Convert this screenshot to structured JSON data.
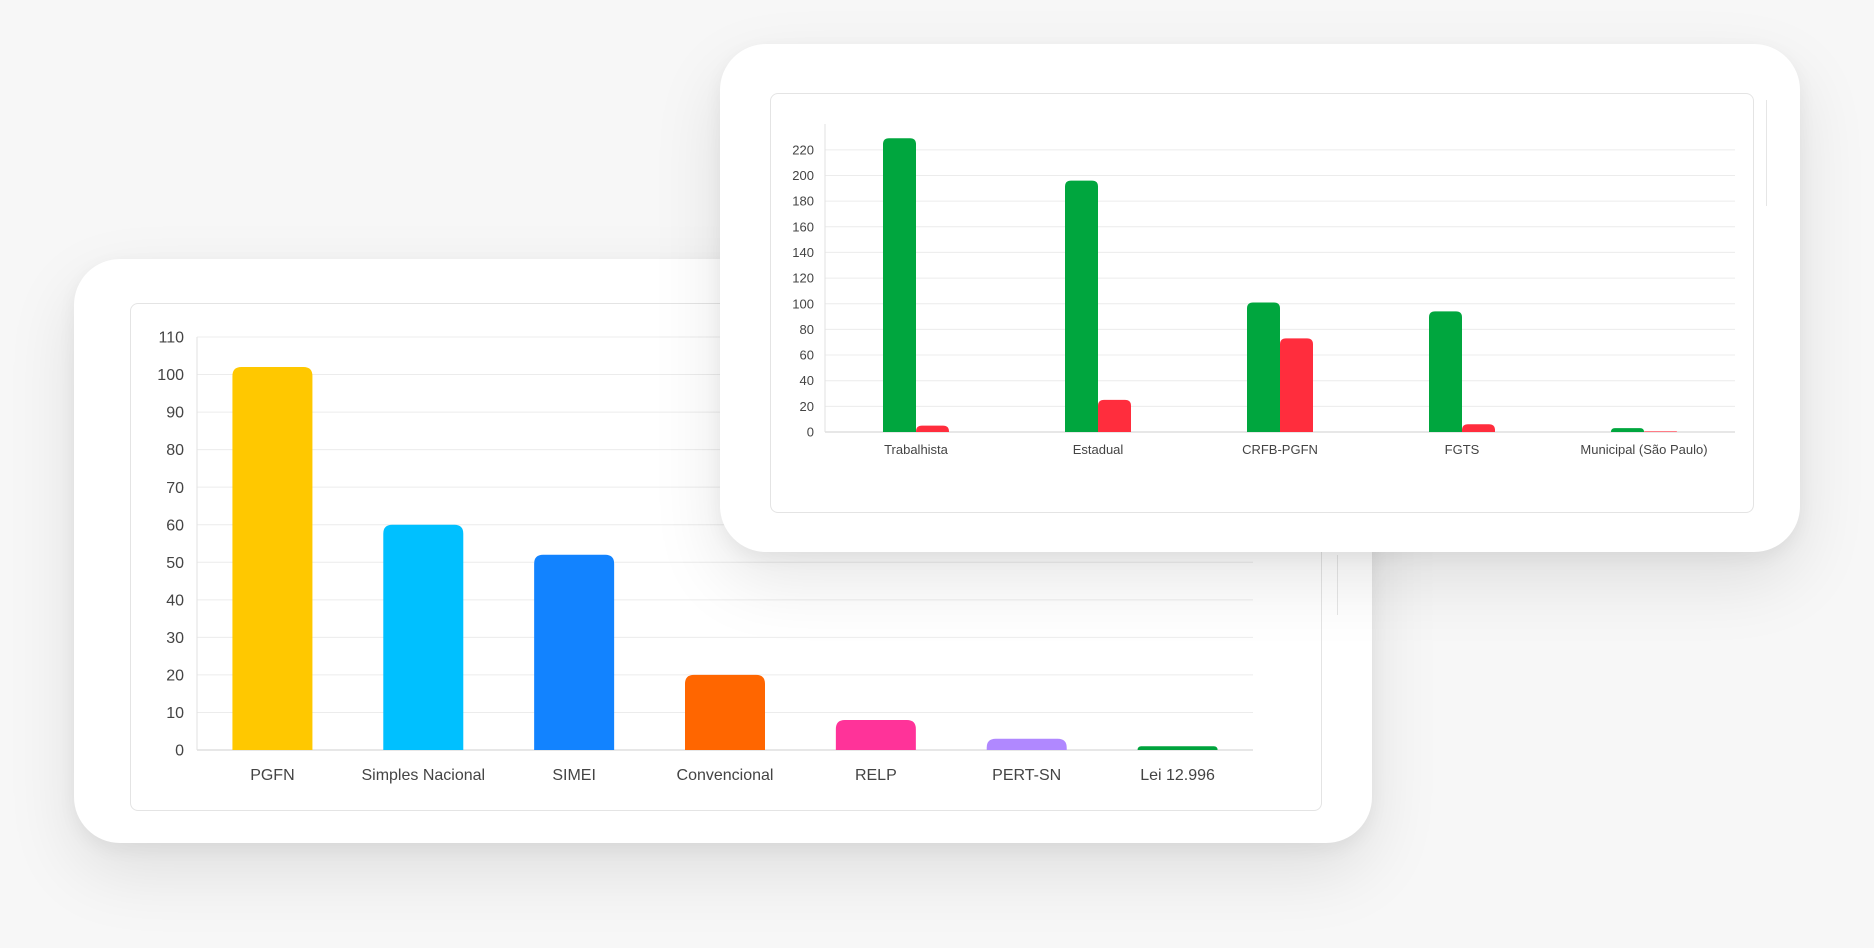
{
  "chart_data": [
    {
      "type": "bar",
      "categories": [
        "PGFN",
        "Simples Nacional",
        "SIMEI",
        "Convencional",
        "RELP",
        "PERT-SN",
        "Lei 12.996"
      ],
      "values": [
        102,
        60,
        52,
        20,
        8,
        3,
        1
      ],
      "colors": [
        "#ffc800",
        "#00c0ff",
        "#1283ff",
        "#ff6600",
        "#ff3399",
        "#b088ff",
        "#00a33d"
      ],
      "yticks": [
        0,
        10,
        20,
        30,
        40,
        50,
        60,
        70,
        80,
        90,
        100,
        110
      ],
      "ylim": [
        0,
        110
      ],
      "grid": true,
      "title": "",
      "xlabel": "",
      "ylabel": ""
    },
    {
      "type": "bar",
      "categories": [
        "Trabalhista",
        "Estadual",
        "CRFB-PGFN",
        "FGTS",
        "Municipal (São Paulo)"
      ],
      "series": [
        {
          "values": [
            229,
            196,
            101,
            94,
            3
          ],
          "color": "#00a63e"
        },
        {
          "values": [
            5,
            25,
            73,
            6,
            0.5
          ],
          "color": "#ff2d3d"
        }
      ],
      "yticks": [
        0,
        20,
        40,
        60,
        80,
        100,
        120,
        140,
        160,
        180,
        200,
        220
      ],
      "ylim": [
        0,
        230
      ],
      "grid": true,
      "title": "",
      "xlabel": "",
      "ylabel": ""
    }
  ]
}
